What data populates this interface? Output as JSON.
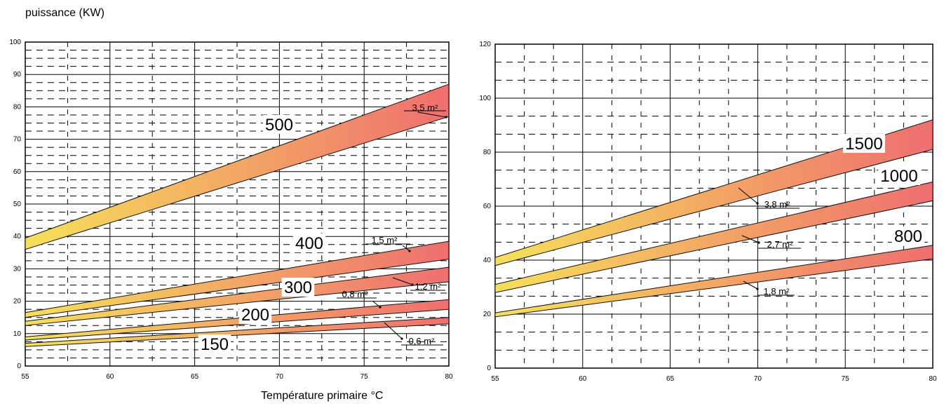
{
  "ylabel": "puissance (KW)",
  "xlabel": "Température primaire °C",
  "chart_data": [
    {
      "type": "area",
      "xlim": [
        55,
        80
      ],
      "ylim": [
        0,
        100
      ],
      "xticks": [
        55,
        60,
        65,
        70,
        75,
        80
      ],
      "yticks": [
        0,
        10,
        20,
        30,
        40,
        50,
        60,
        70,
        80,
        90,
        100
      ],
      "grid": true,
      "series": [
        {
          "name": "500",
          "area_label": "3,5 m²",
          "x": [
            55,
            80
          ],
          "lower": [
            36,
            77
          ],
          "upper": [
            39.5,
            87
          ],
          "colors": [
            "#f6e05a",
            "#ef6f6f"
          ]
        },
        {
          "name": "400",
          "area_label": "1,5 m²",
          "x": [
            55,
            80
          ],
          "lower": [
            15,
            33
          ],
          "upper": [
            16.5,
            38.5
          ],
          "colors": [
            "#f6e05a",
            "#ef6f6f"
          ]
        },
        {
          "name": "300",
          "area_label": "1,2 m²",
          "x": [
            55,
            80
          ],
          "lower": [
            12.5,
            26
          ],
          "upper": [
            13.8,
            30.5
          ],
          "colors": [
            "#f6e05a",
            "#ef6f6f"
          ]
        },
        {
          "name": "200",
          "area_label": "0,8 m²",
          "x": [
            55,
            80
          ],
          "lower": [
            8,
            17.5
          ],
          "upper": [
            9,
            20.5
          ],
          "colors": [
            "#f6e05a",
            "#ef6f6f"
          ]
        },
        {
          "name": "150",
          "area_label": "0,6 m²",
          "x": [
            55,
            80
          ],
          "lower": [
            6,
            13
          ],
          "upper": [
            7,
            15
          ],
          "colors": [
            "#f6e05a",
            "#ef6f6f"
          ]
        }
      ]
    },
    {
      "type": "area",
      "xlim": [
        55,
        80
      ],
      "ylim": [
        0,
        120
      ],
      "xticks": [
        55,
        60,
        65,
        70,
        75,
        80
      ],
      "yticks": [
        0,
        20,
        40,
        60,
        80,
        100,
        120
      ],
      "grid": true,
      "series": [
        {
          "name": "1500",
          "area_label": "3,8 m²",
          "x": [
            55,
            80
          ],
          "lower": [
            38,
            81
          ],
          "upper": [
            41,
            92
          ],
          "colors": [
            "#f6e05a",
            "#ef6f6f"
          ]
        },
        {
          "name": "1000",
          "area_label": "2,7 m²",
          "x": [
            55,
            80
          ],
          "lower": [
            28,
            62
          ],
          "upper": [
            31,
            69
          ],
          "colors": [
            "#f6e05a",
            "#ef6f6f"
          ]
        },
        {
          "name": "800",
          "area_label": "1,8 m²",
          "x": [
            55,
            80
          ],
          "lower": [
            19,
            40.5
          ],
          "upper": [
            20.5,
            45.5
          ],
          "colors": [
            "#f6e05a",
            "#ef6f6f"
          ]
        }
      ]
    }
  ]
}
